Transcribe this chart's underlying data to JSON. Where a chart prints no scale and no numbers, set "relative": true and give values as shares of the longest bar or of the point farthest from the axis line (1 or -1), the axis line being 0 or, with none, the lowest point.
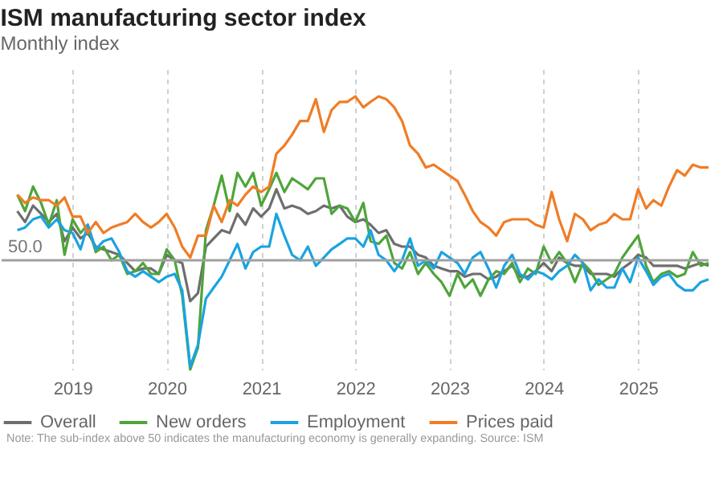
{
  "chart_data": {
    "type": "line",
    "title": "ISM manufacturing sector index",
    "subtitle": "Monthly index",
    "annotations": [
      "50.0",
      "Note: The sub-index above 50 indicates the manufacturing economy is generally expanding. Source: ISM"
    ],
    "x": [
      "2018-06",
      "2018-07",
      "2018-08",
      "2018-09",
      "2018-10",
      "2018-11",
      "2018-12",
      "2019-01",
      "2019-02",
      "2019-03",
      "2019-04",
      "2019-05",
      "2019-06",
      "2019-07",
      "2019-08",
      "2019-09",
      "2019-10",
      "2019-11",
      "2019-12",
      "2020-01",
      "2020-02",
      "2020-03",
      "2020-04",
      "2020-05",
      "2020-06",
      "2020-07",
      "2020-08",
      "2020-09",
      "2020-10",
      "2020-11",
      "2020-12",
      "2021-01",
      "2021-02",
      "2021-03",
      "2021-04",
      "2021-05",
      "2021-06",
      "2021-07",
      "2021-08",
      "2021-09",
      "2021-10",
      "2021-11",
      "2021-12",
      "2022-01",
      "2022-02",
      "2022-03",
      "2022-04",
      "2022-05",
      "2022-06",
      "2022-07",
      "2022-08",
      "2022-09",
      "2022-10",
      "2022-11",
      "2022-12",
      "2023-01",
      "2023-02",
      "2023-03",
      "2023-04",
      "2023-05",
      "2023-06",
      "2023-07",
      "2023-08",
      "2023-09",
      "2023-10",
      "2023-11",
      "2023-12",
      "2024-01",
      "2024-02",
      "2024-03",
      "2024-04",
      "2024-05",
      "2024-06",
      "2024-07",
      "2024-08",
      "2024-09",
      "2024-10",
      "2024-11",
      "2024-12",
      "2025-01",
      "2025-02",
      "2025-03",
      "2025-04",
      "2025-05",
      "2025-06",
      "2025-07",
      "2025-08",
      "2025-09",
      "2025-10"
    ],
    "relative": true,
    "series": [
      {
        "name": "Overall",
        "color": "#6e6e6e",
        "values": [
          0.58,
          0.54,
          0.6,
          0.57,
          0.54,
          0.57,
          0.47,
          0.52,
          0.48,
          0.5,
          0.45,
          0.44,
          0.43,
          0.42,
          0.39,
          0.36,
          0.37,
          0.37,
          0.35,
          0.42,
          0.4,
          0.39,
          0.25,
          0.28,
          0.45,
          0.48,
          0.51,
          0.5,
          0.57,
          0.53,
          0.59,
          0.56,
          0.59,
          0.66,
          0.59,
          0.6,
          0.59,
          0.57,
          0.58,
          0.6,
          0.59,
          0.6,
          0.56,
          0.54,
          0.55,
          0.53,
          0.5,
          0.51,
          0.46,
          0.45,
          0.45,
          0.42,
          0.41,
          0.38,
          0.37,
          0.36,
          0.36,
          0.34,
          0.35,
          0.35,
          0.33,
          0.34,
          0.36,
          0.38,
          0.34,
          0.34,
          0.36,
          0.39,
          0.36,
          0.41,
          0.39,
          0.38,
          0.38,
          0.35,
          0.35,
          0.35,
          0.34,
          0.37,
          0.39,
          0.42,
          0.41,
          0.38,
          0.38,
          0.38,
          0.38,
          0.37,
          0.38,
          0.39,
          0.38
        ]
      },
      {
        "name": "New orders",
        "color": "#4ea53a",
        "values": [
          0.64,
          0.58,
          0.67,
          0.61,
          0.53,
          0.62,
          0.42,
          0.55,
          0.5,
          0.53,
          0.43,
          0.45,
          0.4,
          0.42,
          0.35,
          0.36,
          0.39,
          0.35,
          0.35,
          0.44,
          0.4,
          0.27,
          0,
          0.08,
          0.51,
          0.6,
          0.71,
          0.58,
          0.72,
          0.67,
          0.72,
          0.6,
          0.66,
          0.72,
          0.65,
          0.7,
          0.68,
          0.66,
          0.7,
          0.7,
          0.57,
          0.6,
          0.59,
          0.54,
          0.61,
          0.47,
          0.46,
          0.49,
          0.39,
          0.37,
          0.43,
          0.35,
          0.39,
          0.35,
          0.32,
          0.27,
          0.35,
          0.3,
          0.33,
          0.27,
          0.33,
          0.36,
          0.35,
          0.39,
          0.32,
          0.37,
          0.35,
          0.45,
          0.39,
          0.43,
          0.39,
          0.32,
          0.39,
          0.36,
          0.31,
          0.33,
          0.35,
          0.41,
          0.45,
          0.49,
          0.38,
          0.32,
          0.35,
          0.36,
          0.34,
          0.35,
          0.43,
          0.38,
          0.39
        ]
      },
      {
        "name": "Employment",
        "color": "#1ba3e1",
        "values": [
          0.51,
          0.52,
          0.55,
          0.56,
          0.52,
          0.55,
          0.51,
          0.5,
          0.44,
          0.53,
          0.44,
          0.47,
          0.48,
          0.43,
          0.36,
          0.34,
          0.36,
          0.34,
          0.32,
          0.34,
          0.35,
          0.29,
          0.01,
          0.09,
          0.26,
          0.3,
          0.34,
          0.4,
          0.46,
          0.37,
          0.43,
          0.45,
          0.45,
          0.57,
          0.49,
          0.42,
          0.4,
          0.45,
          0.38,
          0.41,
          0.44,
          0.46,
          0.48,
          0.48,
          0.45,
          0.51,
          0.42,
          0.4,
          0.36,
          0.4,
          0.48,
          0.38,
          0.4,
          0.37,
          0.43,
          0.41,
          0.39,
          0.35,
          0.41,
          0.43,
          0.37,
          0.3,
          0.38,
          0.42,
          0.35,
          0.33,
          0.36,
          0.35,
          0.33,
          0.36,
          0.38,
          0.42,
          0.39,
          0.29,
          0.33,
          0.3,
          0.3,
          0.37,
          0.32,
          0.41,
          0.36,
          0.31,
          0.34,
          0.35,
          0.31,
          0.29,
          0.29,
          0.32,
          0.33
        ]
      },
      {
        "name": "Prices paid",
        "color": "#f07c26",
        "values": [
          0.64,
          0.61,
          0.63,
          0.62,
          0.62,
          0.6,
          0.63,
          0.56,
          0.56,
          0.5,
          0.54,
          0.5,
          0.52,
          0.53,
          0.54,
          0.57,
          0.54,
          0.52,
          0.54,
          0.57,
          0.52,
          0.45,
          0.41,
          0.49,
          0.49,
          0.6,
          0.54,
          0.62,
          0.6,
          0.64,
          0.67,
          0.65,
          0.67,
          0.79,
          0.82,
          0.86,
          0.91,
          0.91,
          0.99,
          0.87,
          0.95,
          0.98,
          0.98,
          1,
          0.96,
          0.98,
          1,
          0.99,
          0.96,
          0.91,
          0.82,
          0.79,
          0.74,
          0.75,
          0.73,
          0.71,
          0.69,
          0.64,
          0.58,
          0.54,
          0.52,
          0.49,
          0.54,
          0.55,
          0.55,
          0.55,
          0.53,
          0.52,
          0.65,
          0.55,
          0.47,
          0.57,
          0.55,
          0.51,
          0.53,
          0.54,
          0.57,
          0.55,
          0.55,
          0.66,
          0.59,
          0.62,
          0.6,
          0.67,
          0.73,
          0.71,
          0.75,
          0.74,
          0.74
        ]
      }
    ],
    "xlim": [
      "2018-04",
      "2025-10"
    ],
    "xticks": [
      "2019",
      "2020",
      "2021",
      "2022",
      "2023",
      "2024",
      "2025"
    ],
    "ref_lines": [
      {
        "axis": "y",
        "value": 0.4,
        "color": "#a0a0a0"
      }
    ],
    "grid": "x",
    "legend": "bottom",
    "line_style": "solid",
    "marker": "none"
  }
}
